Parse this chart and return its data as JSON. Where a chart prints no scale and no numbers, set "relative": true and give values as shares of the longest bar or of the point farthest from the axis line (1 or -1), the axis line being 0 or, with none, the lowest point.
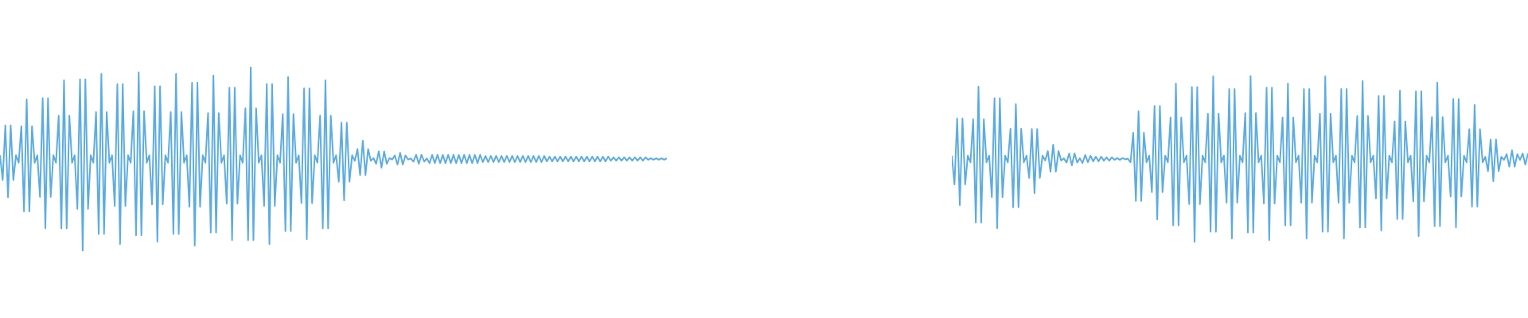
{
  "chart_data": [
    {
      "type": "line",
      "relative": true,
      "tick_labels": false,
      "categories": [
        null,
        null,
        null,
        null,
        null,
        null,
        null,
        null,
        null,
        null,
        null,
        null,
        null,
        null,
        null,
        null,
        null,
        null,
        null,
        null,
        null,
        null,
        null,
        null,
        null,
        null,
        null,
        null,
        null,
        null,
        null,
        null,
        null,
        null,
        null,
        null,
        null,
        null,
        null,
        null,
        null,
        null,
        null,
        null,
        null,
        null,
        null,
        null,
        null,
        null,
        null,
        null,
        null,
        null,
        null,
        null,
        null,
        null,
        null,
        null,
        null,
        null,
        null,
        null,
        null,
        null,
        null,
        null,
        null,
        null,
        null,
        null,
        null,
        null,
        null,
        null,
        null,
        null,
        null,
        null,
        null,
        null,
        null,
        null,
        null,
        null,
        null,
        null,
        null,
        null,
        null,
        null,
        null,
        null,
        null,
        null,
        null,
        null,
        null,
        null,
        null,
        null,
        null,
        null,
        null,
        null,
        null,
        null,
        null,
        null,
        null,
        null,
        null,
        null,
        null,
        null,
        null,
        null,
        null,
        null,
        null,
        null,
        null,
        null,
        null,
        null,
        null,
        null,
        null,
        null,
        null,
        null,
        null,
        null,
        null,
        null,
        null,
        null,
        null,
        null,
        null,
        null,
        null,
        null,
        null,
        null,
        null,
        null,
        null,
        null,
        null,
        null,
        null,
        null,
        null,
        null,
        null,
        null,
        null,
        null,
        null,
        null,
        null,
        null,
        null,
        null,
        null,
        null,
        null,
        null,
        null,
        null,
        null,
        null,
        null,
        null,
        null,
        null,
        null,
        null,
        null,
        null,
        null,
        null,
        null,
        null,
        null,
        null,
        null,
        null,
        null,
        null,
        null,
        null,
        null,
        null,
        null,
        null,
        null,
        null,
        null,
        null,
        null,
        null,
        null,
        null,
        null,
        null,
        null,
        null,
        null,
        null,
        null,
        null,
        null,
        null,
        null,
        null,
        null,
        null,
        null,
        null,
        null,
        null,
        null,
        null,
        null,
        null,
        null,
        null,
        null,
        null,
        null,
        null,
        null,
        null,
        null,
        null,
        null,
        null,
        null,
        null,
        null,
        null,
        null,
        null,
        null,
        null,
        null,
        null,
        null
      ],
      "series": [
        {
          "color": "#5dace1",
          "values": [
            0.52,
            0.386,
            0.682,
            0.293,
            0.682,
            0.386,
            0.52,
            0.48,
            0.678,
            0.216,
            0.823,
            0.216,
            0.678,
            0.48,
            0.52,
            0.294,
            0.83,
            0.125,
            0.83,
            0.294,
            0.52,
            0.48,
            0.735,
            0.124,
            0.927,
            0.124,
            0.735,
            0.48,
            0.52,
            0.23,
            0.932,
            0,
            0.932,
            0.23,
            0.52,
            0.48,
            0.754,
            0.094,
            0.961,
            0.094,
            0.754,
            0.48,
            0.52,
            0.246,
            0.906,
            0.039,
            0.906,
            0.246,
            0.52,
            0.48,
            0.759,
            0.086,
            0.97,
            0.086,
            0.759,
            0.48,
            0.52,
            0.254,
            0.894,
            0.052,
            0.894,
            0.254,
            0.52,
            0.48,
            0.754,
            0.094,
            0.961,
            0.094,
            0.754,
            0.48,
            0.52,
            0.241,
            0.914,
            0.03,
            0.914,
            0.241,
            0.52,
            0.48,
            0.749,
            0.101,
            0.953,
            0.101,
            0.749,
            0.48,
            0.52,
            0.258,
            0.887,
            0.06,
            0.887,
            0.258,
            0.52,
            0.48,
            0.775,
            0.06,
            1,
            0.06,
            0.775,
            0.48,
            0.52,
            0.246,
            0.906,
            0.039,
            0.906,
            0.246,
            0.52,
            0.48,
            0.744,
            0.109,
            0.944,
            0.109,
            0.744,
            0.48,
            0.52,
            0.261,
            0.883,
            0.065,
            0.883,
            0.261,
            0.52,
            0.48,
            0.735,
            0.124,
            0.927,
            0.124,
            0.735,
            0.48,
            0.52,
            0.377,
            0.697,
            0.276,
            0.697,
            0.377,
            0.52,
            0.49,
            0.554,
            0.413,
            0.599,
            0.413,
            0.554,
            0.49,
            0.505,
            0.474,
            0.541,
            0.453,
            0.541,
            0.474,
            0.505,
            0.497,
            0.519,
            0.47,
            0.534,
            0.47,
            0.519,
            0.497,
            0.503,
            0.486,
            0.523,
            0.474,
            0.523,
            0.486,
            0.503,
            0.478,
            0.522,
            0.478,
            0.522,
            0.478,
            0.522,
            0.478,
            0.522,
            0.478,
            0.522,
            0.478,
            0.522,
            0.478,
            0.522,
            0.478,
            0.522,
            0.478,
            0.522,
            0.478,
            0.522,
            0.483,
            0.517,
            0.483,
            0.517,
            0.483,
            0.517,
            0.483,
            0.517,
            0.483,
            0.517,
            0.483,
            0.517,
            0.483,
            0.517,
            0.483,
            0.517,
            0.483,
            0.517,
            0.483,
            0.517,
            0.483,
            0.517,
            0.483,
            0.517,
            0.487,
            0.513,
            0.487,
            0.513,
            0.487,
            0.513,
            0.487,
            0.513,
            0.487,
            0.513,
            0.487,
            0.513,
            0.487,
            0.513,
            0.487,
            0.513,
            0.487,
            0.513,
            0.487,
            0.513,
            0.487,
            0.513,
            0.487,
            0.513,
            0.491,
            0.509,
            0.491,
            0.509,
            0.491,
            0.509,
            0.491,
            0.509,
            0.491,
            0.509,
            0.491,
            0.509,
            0.491,
            0.509,
            0.496,
            0.504,
            0.496,
            0.504,
            0.496,
            0.504,
            0.496,
            0.504
          ]
        }
      ]
    },
    {
      "type": "line",
      "relative": true,
      "tick_labels": false,
      "categories": [
        null,
        null,
        null,
        null,
        null,
        null,
        null,
        null,
        null,
        null,
        null,
        null,
        null,
        null,
        null,
        null,
        null,
        null,
        null,
        null,
        null,
        null,
        null,
        null,
        null,
        null,
        null,
        null,
        null,
        null,
        null,
        null,
        null,
        null,
        null,
        null,
        null,
        null,
        null,
        null,
        null,
        null,
        null,
        null,
        null,
        null,
        null,
        null,
        null,
        null,
        null,
        null,
        null,
        null,
        null,
        null,
        null,
        null,
        null,
        null,
        null,
        null,
        null,
        null,
        null,
        null,
        null,
        null,
        null,
        null,
        null,
        null,
        null,
        null,
        null,
        null,
        null,
        null,
        null,
        null,
        null,
        null,
        null,
        null,
        null,
        null,
        null,
        null,
        null,
        null,
        null,
        null,
        null,
        null,
        null,
        null,
        null,
        null,
        null,
        null,
        null,
        null,
        null,
        null,
        null,
        null,
        null,
        null,
        null,
        null,
        null,
        null,
        null,
        null,
        null,
        null,
        null,
        null,
        null,
        null,
        null,
        null,
        null,
        null,
        null,
        null,
        null,
        null,
        null,
        null,
        null,
        null,
        null,
        null,
        null,
        null,
        null,
        null,
        null,
        null,
        null,
        null,
        null,
        null,
        null,
        null,
        null,
        null,
        null,
        null,
        null,
        null,
        null,
        null,
        null,
        null,
        null,
        null,
        null,
        null,
        null,
        null,
        null,
        null,
        null,
        null,
        null,
        null,
        null,
        null,
        null,
        null,
        null,
        null,
        null,
        null,
        null,
        null,
        null,
        null,
        null,
        null,
        null,
        null,
        null,
        null,
        null,
        null,
        null,
        null,
        null,
        null,
        null,
        null,
        null,
        null,
        null,
        null,
        null,
        null,
        null,
        null,
        null,
        null,
        null,
        null,
        null,
        null,
        null,
        null,
        null,
        null,
        null,
        null,
        null,
        null,
        null
      ],
      "series": [
        {
          "color": "#5dace1",
          "values": [
            0.52,
            0.348,
            0.743,
            0.224,
            0.743,
            0.348,
            0.52,
            0.48,
            0.738,
            0.119,
            0.933,
            0.119,
            0.738,
            0.48,
            0.52,
            0.272,
            0.864,
            0.086,
            0.864,
            0.272,
            0.52,
            0.48,
            0.681,
            0.211,
            0.829,
            0.211,
            0.681,
            0.48,
            0.52,
            0.387,
            0.68,
            0.295,
            0.68,
            0.387,
            0.52,
            0.491,
            0.547,
            0.424,
            0.586,
            0.424,
            0.547,
            0.491,
            0.504,
            0.479,
            0.533,
            0.462,
            0.533,
            0.479,
            0.504,
            0.476,
            0.524,
            0.481,
            0.519,
            0.486,
            0.514,
            0.486,
            0.514,
            0.49,
            0.51,
            0.49,
            0.51,
            0.495,
            0.505,
            0.495,
            0.505,
            0.498,
            0.502,
            0.48,
            0.657,
            0.249,
            0.786,
            0.249,
            0.657,
            0.48,
            0.52,
            0.301,
            0.818,
            0.138,
            0.818,
            0.301,
            0.52,
            0.48,
            0.749,
            0.102,
            0.952,
            0.102,
            0.749,
            0.48,
            0.52,
            0.23,
            0.931,
            0,
            0.931,
            0.23,
            0.52,
            0.48,
            0.772,
            0.064,
            0.995,
            0.064,
            0.772,
            0.48,
            0.52,
            0.238,
            0.919,
            0.024,
            0.919,
            0.238,
            0.52,
            0.48,
            0.775,
            0.06,
            1,
            0.06,
            0.775,
            0.48,
            0.52,
            0.233,
            0.927,
            0.014,
            0.927,
            0.233,
            0.52,
            0.48,
            0.749,
            0.102,
            0.952,
            0.102,
            0.749,
            0.48,
            0.52,
            0.238,
            0.919,
            0.024,
            0.919,
            0.238,
            0.52,
            0.48,
            0.772,
            0.064,
            0.995,
            0.064,
            0.772,
            0.48,
            0.52,
            0.238,
            0.919,
            0.024,
            0.919,
            0.238,
            0.52,
            0.48,
            0.757,
            0.089,
            0.967,
            0.089,
            0.757,
            0.48,
            0.52,
            0.264,
            0.877,
            0.071,
            0.877,
            0.264,
            0.52,
            0.48,
            0.725,
            0.14,
            0.91,
            0.14,
            0.725,
            0.48,
            0.52,
            0.246,
            0.906,
            0.038,
            0.906,
            0.246,
            0.52,
            0.48,
            0.751,
            0.098,
            0.957,
            0.098,
            0.751,
            0.48,
            0.52,
            0.275,
            0.86,
            0.09,
            0.86,
            0.275,
            0.52,
            0.48,
            0.678,
            0.215,
            0.824,
            0.215,
            0.678,
            0.48,
            0.513,
            0.427,
            0.617,
            0.367,
            0.617,
            0.427,
            0.513,
            0.495,
            0.529,
            0.454,
            0.552,
            0.454,
            0.529,
            0.495,
            0.533,
            0.467,
            0.533
          ]
        }
      ]
    }
  ]
}
